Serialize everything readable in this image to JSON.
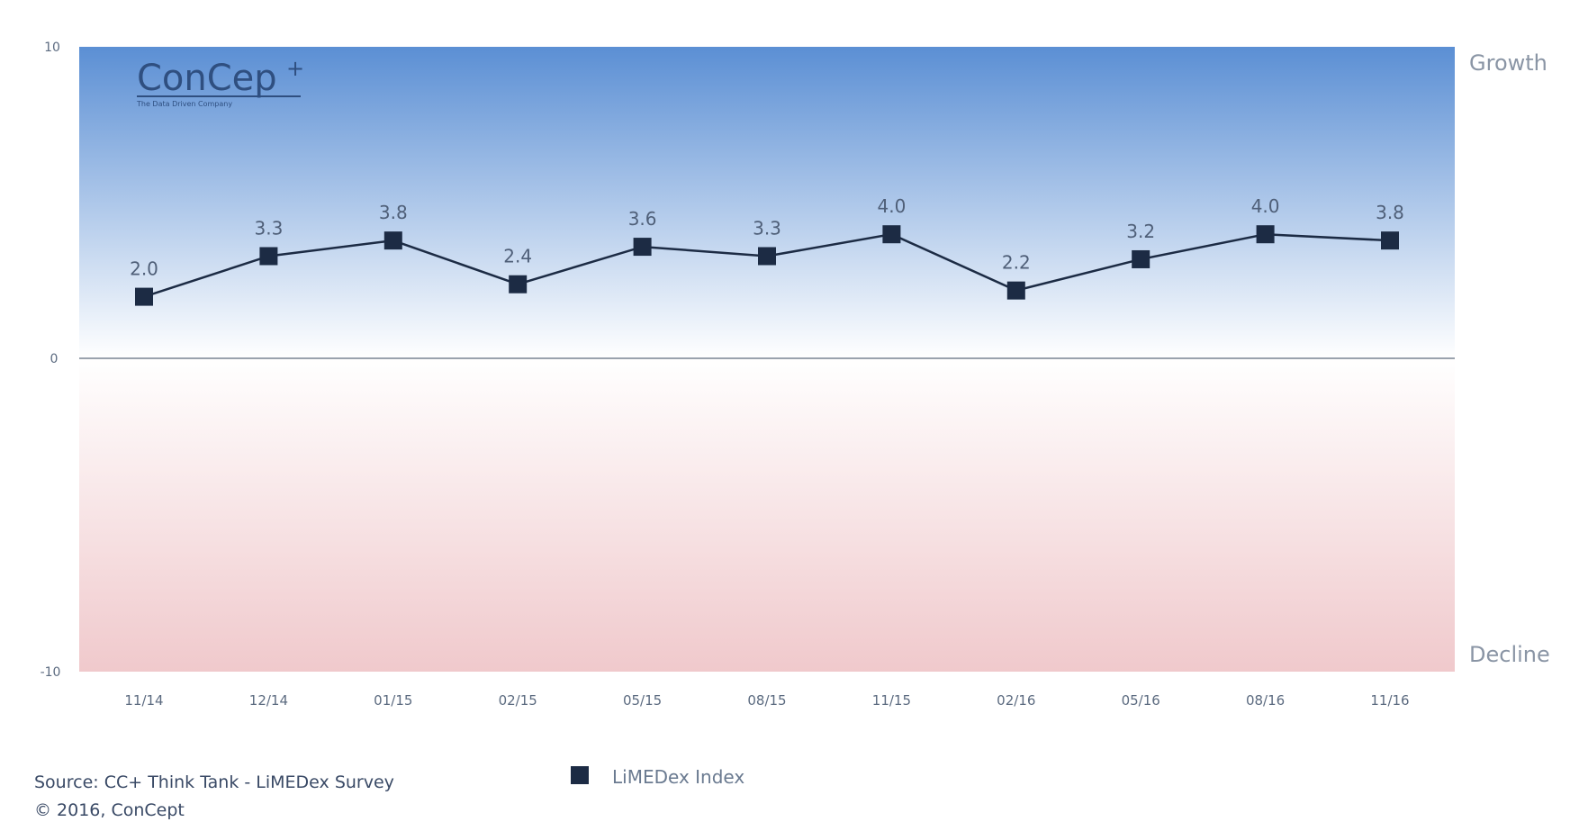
{
  "chart_data": {
    "type": "line",
    "categories": [
      "11/14",
      "12/14",
      "01/15",
      "02/15",
      "05/15",
      "08/15",
      "11/15",
      "02/16",
      "05/16",
      "08/16",
      "11/16"
    ],
    "series": [
      {
        "name": "LiMEDex Index",
        "values": [
          2.0,
          3.3,
          3.8,
          2.4,
          3.6,
          3.3,
          4.0,
          2.2,
          3.2,
          4.0,
          3.8
        ]
      }
    ],
    "data_labels": [
      "2.0",
      "3.3",
      "3.8",
      "2.4",
      "3.6",
      "3.3",
      "4.0",
      "2.2",
      "3.2",
      "4.0",
      "3.8"
    ],
    "ylim": [
      -10,
      10
    ],
    "y_ticks": [
      "10",
      "0",
      "-10"
    ],
    "zones": {
      "top": "Growth",
      "bottom": "Decline"
    },
    "colors": {
      "line": "#1c2b44",
      "marker": "#1c2b44",
      "growth_top": "#5b8fd4",
      "growth_bottom": "#ffffff",
      "decline_top": "#ffffff",
      "decline_bottom": "#f0c9cc"
    },
    "legend_position": "bottom"
  },
  "logo": {
    "text": "ConCep",
    "tagline": "The Data Driven Company"
  },
  "footer": {
    "source": "Source: CC+ Think Tank - LiMEDex Survey",
    "copyright": "© 2016, ConCept"
  }
}
